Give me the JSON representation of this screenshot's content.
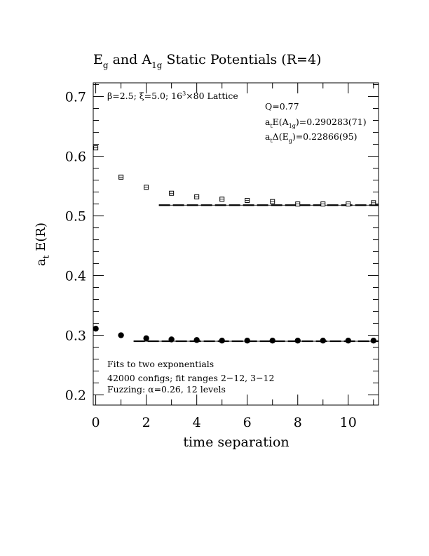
{
  "chart_data": {
    "type": "scatter",
    "title": {
      "pre": "E",
      "sub1": "g",
      "mid": " and A",
      "sub2": "1g",
      "post": " Static Potentials (R=4)"
    },
    "xlabel": "time separation",
    "ylabel": {
      "main": "a",
      "sub": "t",
      "rest": " E(R)"
    },
    "xlim": [
      -0.1,
      11.2
    ],
    "ylim": [
      0.183,
      0.723
    ],
    "xticks": [
      0,
      2,
      4,
      6,
      8,
      10
    ],
    "yticks": [
      0.2,
      0.3,
      0.4,
      0.5,
      0.6,
      0.7
    ],
    "xtick_labels": [
      "0",
      "2",
      "4",
      "6",
      "8",
      "10"
    ],
    "ytick_labels": [
      "0.2",
      "0.3",
      "0.4",
      "0.5",
      "0.6",
      "0.7"
    ],
    "series": [
      {
        "marker": "open-square",
        "x": [
          0,
          1,
          2,
          3,
          4,
          5,
          6,
          7,
          8,
          9,
          10,
          11
        ],
        "y": [
          0.614,
          0.565,
          0.548,
          0.538,
          0.532,
          0.528,
          0.526,
          0.524,
          0.52,
          0.52,
          0.52,
          0.522
        ],
        "fit": {
          "x_start": 2.5,
          "x_end": 11.2,
          "value": 0.518
        }
      },
      {
        "marker": "filled-circle",
        "x": [
          0,
          1,
          2,
          3,
          4,
          5,
          6,
          7,
          8,
          9,
          10,
          11
        ],
        "y": [
          0.311,
          0.3,
          0.295,
          0.293,
          0.292,
          0.291,
          0.291,
          0.291,
          0.291,
          0.291,
          0.291,
          0.291
        ],
        "fit": {
          "x_start": 1.5,
          "x_end": 11.2,
          "value": 0.29
        }
      }
    ],
    "annotations": {
      "lattice": {
        "beta": "β=2.5; ξ=5.0; 16",
        "exp": "3",
        "rest": "×80 Lattice"
      },
      "q_value": "Q=0.77",
      "energy_a1g": {
        "a": "a",
        "sub_t": "t",
        "mid": "E(A",
        "sub_g": "1g",
        "rest": ")=0.290283(71)"
      },
      "gap_eg": {
        "a": "a",
        "sub_t": "t",
        "mid": "Δ(E",
        "sub_g": "g",
        "rest": ")=0.22866(95)"
      },
      "notes": [
        "Fits to two exponentials",
        "42000 configs; fit ranges 2−12, 3−12",
        "Fuzzing: α=0.26, 12 levels"
      ]
    }
  }
}
